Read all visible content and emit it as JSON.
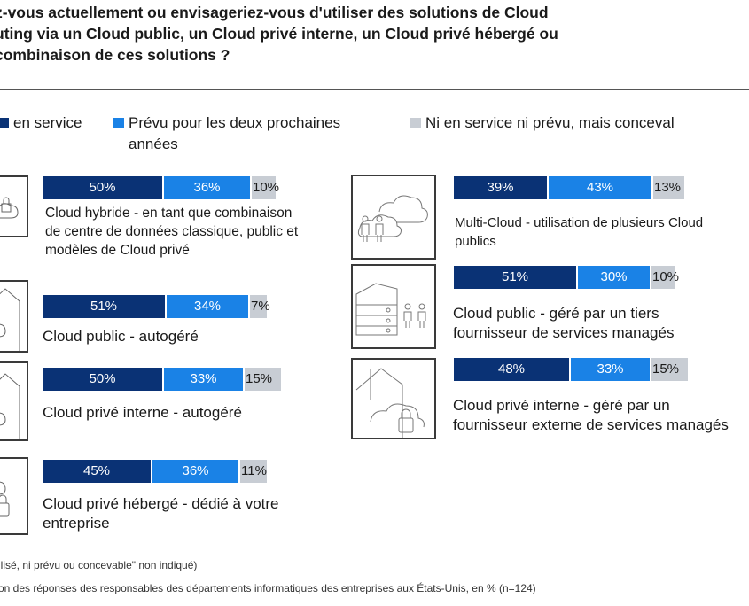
{
  "title_lines": [
    "z-vous actuellement ou envisageriez-vous d'utiliser des solutions de Cloud",
    "uting via un Cloud public, un Cloud privé interne, un Cloud privé hébergé ou",
    "combinaison de ces solutions ?"
  ],
  "legend": [
    {
      "label": "en service",
      "color": "#0a3275"
    },
    {
      "label": "Prévu pour les deux prochaines années",
      "color": "#1a82e6"
    },
    {
      "label": "Ni en service ni prévu, mais conceval",
      "color": "#c8cdd4"
    }
  ],
  "colors": {
    "in_service": "#0a3275",
    "planned": "#1a82e6",
    "conceivable": "#c8cdd4",
    "icon_stroke": "#3a3a3a"
  },
  "chart_data": {
    "type": "bar",
    "orientation": "horizontal",
    "stacked": true,
    "unit": "%",
    "series_names": [
      "en service",
      "Prévu pour les deux prochaines années",
      "Ni en service ni prévu, mais conceval"
    ],
    "items": [
      {
        "label": "Cloud hybride - en tant que combinaison de centre de données classique, public et modèles de Cloud privé",
        "values": [
          50,
          36,
          10
        ],
        "icon": "hybrid-cloud-icon"
      },
      {
        "label": "Cloud public - autogéré",
        "values": [
          51,
          34,
          7
        ],
        "icon": "house-cloud-icon"
      },
      {
        "label": "Cloud privé interne - autogéré",
        "values": [
          50,
          33,
          15
        ],
        "icon": "house-cloud-icon"
      },
      {
        "label": "Cloud privé hébergé - dédié à votre entreprise",
        "values": [
          45,
          36,
          11
        ],
        "icon": "locked-cloud-icon"
      },
      {
        "label": "Multi-Cloud - utilisation de plusieurs Cloud publics",
        "values": [
          39,
          43,
          13
        ],
        "icon": "multi-cloud-people-icon"
      },
      {
        "label": "Cloud public - géré par un tiers fournisseur de services managés",
        "values": [
          51,
          30,
          10
        ],
        "icon": "server-people-icon"
      },
      {
        "label": "Cloud privé interne - géré par un fournisseur externe de services managés",
        "values": [
          48,
          33,
          15
        ],
        "icon": "house-cloud-lock-icon"
      }
    ]
  },
  "footnotes": [
    "ilisé, ni prévu ou concevable\" non indiqué)",
    "on des réponses des responsables des départements informatiques des entreprises aux États-Unis, en % (n=124)"
  ]
}
